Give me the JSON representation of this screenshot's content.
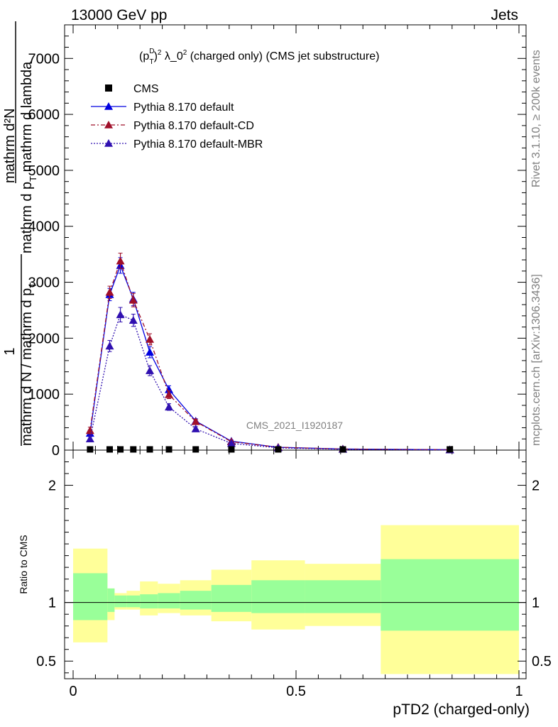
{
  "chart_data": {
    "type": "scatter",
    "header_left": "13000 GeV pp",
    "header_right": "Jets",
    "title_prefix": "(p",
    "title_sub": "T",
    "title_sup1": "D",
    "title_sup2": "2",
    "title_mid": " λ_0",
    "title_sup3": "2",
    "title_suffix": " (charged only) (CMS jet substructure)",
    "ylabel_top": "mathrm d^{2}N / mathrm d p_T mathrm d lambda",
    "ylabel_line1": "mathrm d²N",
    "ylabel_line2": "mathrm d p_T mathrm d lambda",
    "ylabel_frac_one": "1",
    "ylabel_denominator": "mathrm d N / mathrm d p_T",
    "ylabel_top_text": "mathrm d²N",
    "ylabel_mid_text": "mathrm d p",
    "ylabel_mid_sub": "T",
    "ylabel_mid_tail": " mathrm d lambda",
    "ylabel_bot_text": "mathrm d N / mathrm d p",
    "ylabel_bot_sub": "T",
    "xlabel": "pTD2 (charged-only)",
    "ratio_ylabel": "Ratio to CMS",
    "watermark": "CMS_2021_I1920187",
    "side_text_top": "Rivet 3.1.10, ≥ 200k events",
    "side_text_bottom": "mcplots.cern.ch [arXiv:1306.3436]",
    "xlim": [
      0,
      1
    ],
    "ylim": [
      0,
      7600
    ],
    "ratio_ylim": [
      0.35,
      2.3
    ],
    "x_ticks": [
      "0",
      "0.5",
      "1"
    ],
    "x_tick_values": [
      0,
      0.5,
      1
    ],
    "y_ticks": [
      "0",
      "1000",
      "2000",
      "3000",
      "4000",
      "5000",
      "6000",
      "7000"
    ],
    "y_tick_values": [
      0,
      1000,
      2000,
      3000,
      4000,
      5000,
      6000,
      7000
    ],
    "ratio_ticks": [
      "0.5",
      "1",
      "2"
    ],
    "ratio_tick_values": [
      0.5,
      1,
      2
    ],
    "legend": [
      {
        "label": "CMS",
        "marker": "square",
        "color": "#000000",
        "dash": ""
      },
      {
        "label": "Pythia 8.170 default",
        "marker": "triangle",
        "color": "#0000e0",
        "dash": ""
      },
      {
        "label": "Pythia 8.170 default-CD",
        "marker": "triangle",
        "color": "#a0102a",
        "dash": "6,3,2,3"
      },
      {
        "label": "Pythia 8.170 default-MBR",
        "marker": "triangle",
        "color": "#3010b0",
        "dash": "2,2"
      }
    ],
    "bins": [
      [
        0.0,
        0.077
      ],
      [
        0.077,
        0.093
      ],
      [
        0.093,
        0.12
      ],
      [
        0.12,
        0.15
      ],
      [
        0.15,
        0.19
      ],
      [
        0.19,
        0.24
      ],
      [
        0.24,
        0.31
      ],
      [
        0.31,
        0.4
      ],
      [
        0.4,
        0.52
      ],
      [
        0.52,
        0.69
      ],
      [
        0.69,
        1.0
      ]
    ],
    "cms_x": [
      0.038,
      0.082,
      0.106,
      0.135,
      0.172,
      0.215,
      0.275,
      0.355,
      0.46,
      0.605,
      0.845
    ],
    "cms_values": [
      0,
      0,
      0,
      0,
      0,
      0,
      0,
      0,
      0,
      0,
      0
    ],
    "series": [
      {
        "name": "Pythia 8.170 default",
        "color": "#0000e0",
        "dash": "",
        "values": [
          300,
          2780,
          3300,
          2700,
          1750,
          1080,
          520,
          160,
          50,
          20,
          7
        ],
        "errors": [
          60,
          110,
          140,
          120,
          100,
          70,
          40,
          20,
          10,
          6,
          3
        ]
      },
      {
        "name": "Pythia 8.170 default-CD",
        "color": "#a0102a",
        "dash": "6,3,2,3",
        "values": [
          350,
          2820,
          3380,
          2680,
          1980,
          990,
          510,
          150,
          50,
          20,
          7
        ],
        "errors": [
          60,
          110,
          140,
          120,
          100,
          70,
          40,
          20,
          10,
          6,
          3
        ]
      },
      {
        "name": "Pythia 8.170 default-MBR",
        "color": "#3010b0",
        "dash": "2,2",
        "values": [
          200,
          1860,
          2420,
          2320,
          1420,
          770,
          380,
          120,
          40,
          15,
          5
        ],
        "errors": [
          50,
          100,
          130,
          110,
          90,
          60,
          40,
          20,
          10,
          6,
          3
        ]
      }
    ],
    "ratio_band_inner": [
      [
        0.85,
        1.25
      ],
      [
        0.92,
        1.12
      ],
      [
        0.96,
        1.06
      ],
      [
        0.96,
        1.06
      ],
      [
        0.95,
        1.07
      ],
      [
        0.95,
        1.08
      ],
      [
        0.94,
        1.1
      ],
      [
        0.92,
        1.15
      ],
      [
        0.91,
        1.19
      ],
      [
        0.91,
        1.19
      ],
      [
        0.76,
        1.37
      ]
    ],
    "ratio_band_outer": [
      [
        0.66,
        1.46
      ],
      [
        0.85,
        1.12
      ],
      [
        0.94,
        1.08
      ],
      [
        0.94,
        1.1
      ],
      [
        0.89,
        1.18
      ],
      [
        0.91,
        1.16
      ],
      [
        0.89,
        1.19
      ],
      [
        0.84,
        1.28
      ],
      [
        0.77,
        1.36
      ],
      [
        0.8,
        1.33
      ],
      [
        0.39,
        1.66
      ]
    ],
    "colors": {
      "inner_band": "#99ff99",
      "outer_band": "#ffff99"
    }
  }
}
